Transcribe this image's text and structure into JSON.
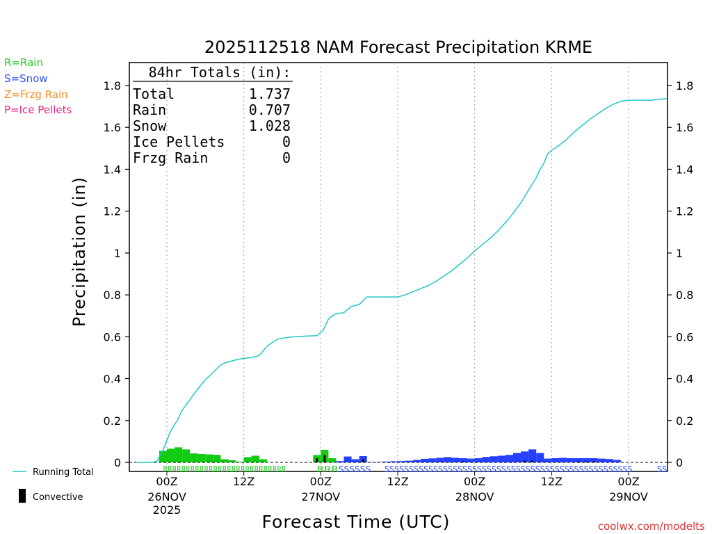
{
  "chart_data": {
    "type": "bar",
    "title": "2025112518 NAM Forecast Precipitation KRME",
    "xlabel": "Forecast Time (UTC)",
    "ylabel": "Precipitation (in)",
    "ylim": [
      -0.02,
      1.9
    ],
    "yticks": [
      0,
      0.2,
      0.4,
      0.6,
      0.8,
      1,
      1.2,
      1.4,
      1.6,
      1.8
    ],
    "ytick_labels": [
      "0",
      "0.2",
      "0.4",
      "0.6",
      "0.8",
      "1",
      "1.2",
      "1.4",
      "1.6",
      "1.8"
    ],
    "xlim_hours": [
      -4,
      65
    ],
    "xticks": [
      {
        "hour": 0,
        "label": "00Z",
        "sub": "26NOV",
        "sub2": "2025"
      },
      {
        "hour": 10,
        "label": "12Z",
        "sub": "",
        "sub2": ""
      },
      {
        "hour": 20,
        "label": "00Z",
        "sub": "27NOV",
        "sub2": ""
      },
      {
        "hour": 30,
        "label": "12Z",
        "sub": "",
        "sub2": ""
      },
      {
        "hour": 40,
        "label": "00Z",
        "sub": "28NOV",
        "sub2": ""
      },
      {
        "hour": 50,
        "label": "12Z",
        "sub": "",
        "sub2": ""
      },
      {
        "hour": 60,
        "label": "00Z",
        "sub": "29NOV",
        "sub2": ""
      }
    ],
    "legend": {
      "types": [
        {
          "text": "R=Rain",
          "color": "#22cc22"
        },
        {
          "text": "S=Snow",
          "color": "#2f52ff"
        },
        {
          "text": "Z=Frzg Rain",
          "color": "#f28c28"
        },
        {
          "text": "P=Ice Pellets",
          "color": "#ee2288"
        }
      ],
      "running_total": "Running Total",
      "convective": "Convective"
    },
    "totals": {
      "header": "84hr Totals (in):",
      "rows": [
        {
          "label": "Total",
          "value": "1.737"
        },
        {
          "label": "Rain",
          "value": "0.707"
        },
        {
          "label": "Snow",
          "value": "1.028"
        },
        {
          "label": "Ice Pellets",
          "value": "0"
        },
        {
          "label": "Frzg Rain",
          "value": "0"
        }
      ]
    },
    "series": [
      {
        "name": "Rain",
        "color": "#11cc11",
        "bars": [
          {
            "hour": -0.5,
            "value": 0.055
          },
          {
            "hour": 0.5,
            "value": 0.065
          },
          {
            "hour": 1.5,
            "value": 0.072
          },
          {
            "hour": 2.5,
            "value": 0.062
          },
          {
            "hour": 3.5,
            "value": 0.043
          },
          {
            "hour": 4.5,
            "value": 0.04
          },
          {
            "hour": 5.5,
            "value": 0.038
          },
          {
            "hour": 6.5,
            "value": 0.036
          },
          {
            "hour": 7.5,
            "value": 0.015
          },
          {
            "hour": 8.5,
            "value": 0.01
          },
          {
            "hour": 9.5,
            "value": 0.003
          },
          {
            "hour": 10.5,
            "value": 0.025
          },
          {
            "hour": 11.5,
            "value": 0.032
          },
          {
            "hour": 12.5,
            "value": 0.015
          },
          {
            "hour": 19.5,
            "value": 0.035
          },
          {
            "hour": 20.5,
            "value": 0.06
          },
          {
            "hour": 21.5,
            "value": 0.02
          }
        ]
      },
      {
        "name": "Snow",
        "color": "#2540ff",
        "bars": [
          {
            "hour": 22.5,
            "value": 0.006
          },
          {
            "hour": 23.5,
            "value": 0.028
          },
          {
            "hour": 24.5,
            "value": 0.015
          },
          {
            "hour": 25.5,
            "value": 0.03
          },
          {
            "hour": 26.5,
            "value": 0.002
          },
          {
            "hour": 27.5,
            "value": 0.002
          },
          {
            "hour": 28.5,
            "value": 0.004
          },
          {
            "hour": 29.5,
            "value": 0.005
          },
          {
            "hour": 30.5,
            "value": 0.006
          },
          {
            "hour": 31.5,
            "value": 0.008
          },
          {
            "hour": 32.5,
            "value": 0.012
          },
          {
            "hour": 33.5,
            "value": 0.017
          },
          {
            "hour": 34.5,
            "value": 0.019
          },
          {
            "hour": 35.5,
            "value": 0.022
          },
          {
            "hour": 36.5,
            "value": 0.025
          },
          {
            "hour": 37.5,
            "value": 0.022
          },
          {
            "hour": 38.5,
            "value": 0.02
          },
          {
            "hour": 39.5,
            "value": 0.018
          },
          {
            "hour": 40.5,
            "value": 0.02
          },
          {
            "hour": 41.5,
            "value": 0.026
          },
          {
            "hour": 42.5,
            "value": 0.029
          },
          {
            "hour": 43.5,
            "value": 0.032
          },
          {
            "hour": 44.5,
            "value": 0.036
          },
          {
            "hour": 45.5,
            "value": 0.045
          },
          {
            "hour": 46.5,
            "value": 0.052
          },
          {
            "hour": 47.5,
            "value": 0.062
          },
          {
            "hour": 48.5,
            "value": 0.045
          },
          {
            "hour": 49.5,
            "value": 0.018
          },
          {
            "hour": 50.5,
            "value": 0.02
          },
          {
            "hour": 51.5,
            "value": 0.022
          },
          {
            "hour": 52.5,
            "value": 0.02
          },
          {
            "hour": 53.5,
            "value": 0.02
          },
          {
            "hour": 54.5,
            "value": 0.02
          },
          {
            "hour": 55.5,
            "value": 0.02
          },
          {
            "hour": 56.5,
            "value": 0.018
          },
          {
            "hour": 57.5,
            "value": 0.016
          },
          {
            "hour": 58.5,
            "value": 0.012
          }
        ]
      },
      {
        "name": "Convective",
        "color": "#000000",
        "bars": [
          {
            "hour": 19.5,
            "value": 0.02
          },
          {
            "hour": 20.5,
            "value": 0.035
          },
          {
            "hour": 25.5,
            "value": 0.015
          },
          {
            "hour": 38.5,
            "value": 0.005
          },
          {
            "hour": 46.5,
            "value": 0.008
          },
          {
            "hour": 47.5,
            "value": 0.008
          },
          {
            "hour": 53.5,
            "value": 0.005
          },
          {
            "hour": 54.5,
            "value": 0.005
          },
          {
            "hour": 55.5,
            "value": 0.005
          }
        ]
      },
      {
        "name": "Running Total",
        "type": "line",
        "color": "#1fc8c8",
        "points": [
          [
            -4,
            0
          ],
          [
            -2,
            0
          ],
          [
            -1.3,
            0.005
          ],
          [
            -0.5,
            0.06
          ],
          [
            0.5,
            0.15
          ],
          [
            1.5,
            0.21
          ],
          [
            2,
            0.25
          ],
          [
            3,
            0.3
          ],
          [
            4,
            0.35
          ],
          [
            5,
            0.395
          ],
          [
            6,
            0.43
          ],
          [
            7,
            0.465
          ],
          [
            7.5,
            0.475
          ],
          [
            8,
            0.48
          ],
          [
            9,
            0.49
          ],
          [
            10,
            0.497
          ],
          [
            11,
            0.5
          ],
          [
            12,
            0.51
          ],
          [
            13,
            0.555
          ],
          [
            14,
            0.58
          ],
          [
            14.5,
            0.59
          ],
          [
            16,
            0.598
          ],
          [
            18,
            0.603
          ],
          [
            19.5,
            0.605
          ],
          [
            20.3,
            0.63
          ],
          [
            21,
            0.685
          ],
          [
            21.5,
            0.7
          ],
          [
            22,
            0.71
          ],
          [
            23,
            0.715
          ],
          [
            24,
            0.745
          ],
          [
            25,
            0.755
          ],
          [
            26,
            0.79
          ],
          [
            28,
            0.79
          ],
          [
            30,
            0.79
          ],
          [
            31,
            0.8
          ],
          [
            32,
            0.815
          ],
          [
            33,
            0.83
          ],
          [
            34,
            0.845
          ],
          [
            35,
            0.865
          ],
          [
            36,
            0.89
          ],
          [
            37,
            0.915
          ],
          [
            38,
            0.945
          ],
          [
            39,
            0.975
          ],
          [
            40,
            1.01
          ],
          [
            41,
            1.04
          ],
          [
            42,
            1.07
          ],
          [
            43,
            1.105
          ],
          [
            44,
            1.145
          ],
          [
            45,
            1.19
          ],
          [
            46,
            1.24
          ],
          [
            47,
            1.3
          ],
          [
            48,
            1.36
          ],
          [
            48.5,
            1.4
          ],
          [
            49,
            1.43
          ],
          [
            49.5,
            1.475
          ],
          [
            50,
            1.49
          ],
          [
            51,
            1.515
          ],
          [
            52,
            1.545
          ],
          [
            53,
            1.58
          ],
          [
            54,
            1.61
          ],
          [
            55,
            1.64
          ],
          [
            56,
            1.665
          ],
          [
            57,
            1.69
          ],
          [
            58,
            1.71
          ],
          [
            59,
            1.725
          ],
          [
            60,
            1.73
          ],
          [
            61,
            1.73
          ],
          [
            63,
            1.73
          ],
          [
            64,
            1.735
          ],
          [
            65,
            1.737
          ]
        ]
      }
    ],
    "precip_type_strip": [
      {
        "from": -0.5,
        "to": 15.5,
        "text": "RRRRRRRRRRRRRRRRRRRRRRRRRRR",
        "color": "#22cc22"
      },
      {
        "from": 19.5,
        "to": 22.3,
        "text": "RRR",
        "color": "#22cc22"
      },
      {
        "from": 22.3,
        "to": 26.5,
        "text": "SSSSSS",
        "color": "#2f52ff"
      },
      {
        "from": 28.3,
        "to": 60.5,
        "text": "SSSSSSSSSSSSSSSSSSSSSSSSSSSSSSSSSSSSSSSSSSSSSSSSSSS",
        "color": "#2f52ff"
      },
      {
        "from": 63.7,
        "to": 65,
        "text": "SS",
        "color": "#2f52ff"
      }
    ]
  },
  "credit": "coolwx.com/modelts"
}
